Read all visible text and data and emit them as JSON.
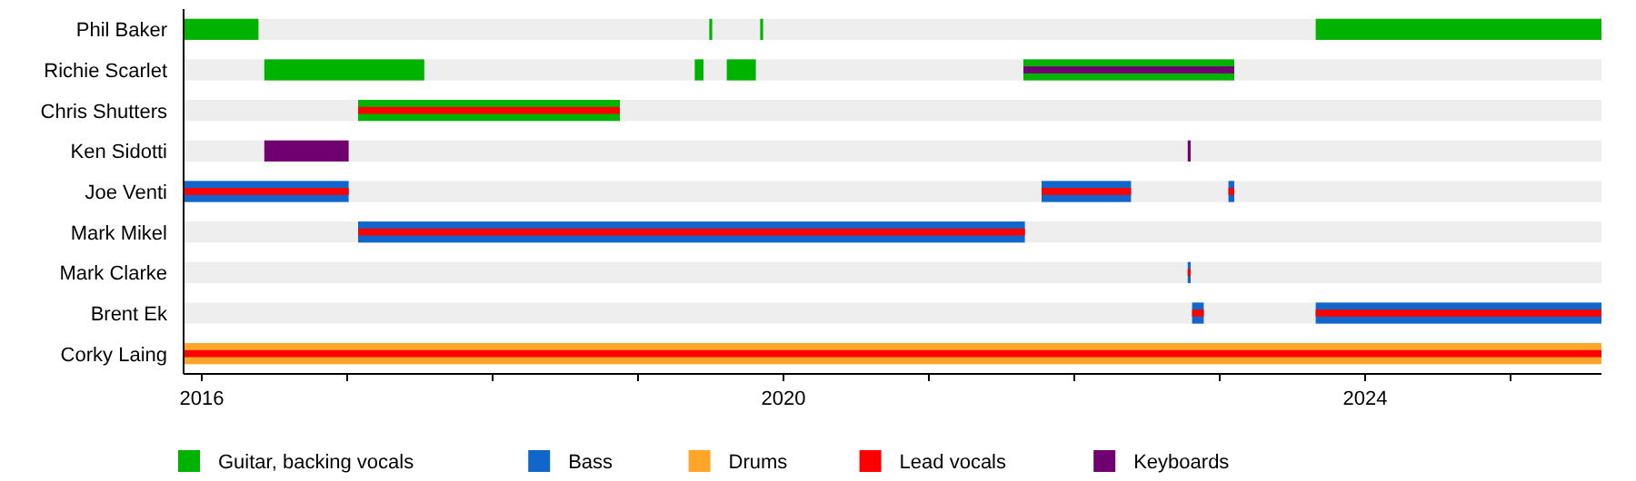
{
  "chart_data": {
    "type": "bar",
    "orientation": "horizontal",
    "categories": [
      "Phil Baker",
      "Richie Scarlet",
      "Chris Shutters",
      "Ken Sidotti",
      "Joe Venti",
      "Mark Mikel",
      "Mark Clarke",
      "Brent Ek",
      "Corky Laing"
    ],
    "xlim": [
      2015.875,
      2025.625
    ],
    "xticks": [
      2016,
      {
        "value": 2017,
        "label": null
      },
      {
        "value": 2018,
        "label": null
      },
      {
        "value": 2019,
        "label": null
      },
      2020,
      {
        "value": 2021,
        "label": null
      },
      {
        "value": 2022,
        "label": null
      },
      {
        "value": 2023,
        "label": null
      },
      2024,
      {
        "value": 2025,
        "label": null
      }
    ],
    "legend": "bottom",
    "grid": false,
    "series": [
      {
        "name": "Guitar, backing vocals",
        "color": "#00b300",
        "base": [
          2015.875,
          2016.43,
          2017.075,
          null,
          null,
          null,
          null,
          null,
          null
        ],
        "values": [
          0.515,
          1.1,
          1.8,
          null,
          null,
          null,
          null,
          null,
          null
        ]
      },
      {
        "color": "#00b300",
        "base": [
          2019.49,
          2019.39,
          null,
          null,
          null,
          null,
          null,
          null,
          null
        ],
        "values": [
          0.02,
          0.06,
          null,
          null,
          null,
          null,
          null,
          null,
          null
        ]
      },
      {
        "color": "#00b300",
        "base": [
          2019.84,
          2019.61,
          null,
          null,
          null,
          null,
          null,
          null,
          null
        ],
        "values": [
          0.02,
          0.2,
          null,
          null,
          null,
          null,
          null,
          null,
          null
        ]
      },
      {
        "color": "#00b300",
        "base": [
          2023.66,
          2021.65,
          null,
          null,
          null,
          null,
          null,
          null,
          null
        ],
        "values": [
          1.965,
          1.45,
          null,
          null,
          null,
          null,
          null,
          null,
          null
        ]
      },
      {
        "name": "Bass",
        "color": "#1166cc",
        "base": [
          null,
          null,
          null,
          null,
          2015.875,
          2017.075,
          2022.78,
          2022.81,
          null
        ],
        "values": [
          null,
          null,
          null,
          null,
          1.135,
          4.585,
          0.02,
          0.08,
          null
        ]
      },
      {
        "color": "#1166cc",
        "base": [
          null,
          null,
          null,
          null,
          2021.775,
          null,
          null,
          2023.66,
          null
        ],
        "values": [
          null,
          null,
          null,
          null,
          0.615,
          null,
          null,
          1.965,
          null
        ]
      },
      {
        "color": "#1166cc",
        "base": [
          null,
          null,
          null,
          null,
          2023.06,
          null,
          null,
          null,
          null
        ],
        "values": [
          null,
          null,
          null,
          null,
          0.04,
          null,
          null,
          null,
          null
        ]
      },
      {
        "name": "Drums",
        "color": "#ffa52a",
        "base": [
          null,
          null,
          null,
          null,
          null,
          null,
          null,
          null,
          2015.875
        ],
        "values": [
          null,
          null,
          null,
          null,
          null,
          null,
          null,
          null,
          9.75
        ]
      },
      {
        "name": "Lead vocals",
        "color": "#ff0000",
        "base": [
          null,
          null,
          2017.075,
          null,
          2015.875,
          2017.075,
          2022.78,
          2022.81,
          2015.875
        ],
        "values": [
          null,
          null,
          1.8,
          null,
          1.135,
          4.585,
          0.02,
          0.08,
          9.75
        ]
      },
      {
        "color": "#ff0000",
        "base": [
          null,
          null,
          null,
          null,
          2021.775,
          null,
          null,
          2023.66,
          null
        ],
        "values": [
          null,
          null,
          null,
          null,
          0.615,
          null,
          null,
          1.965,
          null
        ]
      },
      {
        "color": "#ff0000",
        "base": [
          null,
          null,
          null,
          null,
          2023.06,
          null,
          null,
          null,
          null
        ],
        "values": [
          null,
          null,
          null,
          null,
          0.04,
          null,
          null,
          null,
          null
        ]
      },
      {
        "name": "Keyboards",
        "color": "#700070",
        "base": [
          null,
          2021.65,
          null,
          2016.43,
          null,
          null,
          null,
          null,
          null
        ],
        "values": [
          null,
          1.45,
          null,
          0.58,
          null,
          null,
          null,
          null,
          null
        ]
      },
      {
        "color": "#700070",
        "base": [
          null,
          null,
          null,
          2022.78,
          null,
          null,
          null,
          null,
          null
        ],
        "values": [
          null,
          null,
          null,
          0.02,
          null,
          null,
          null,
          null,
          null
        ]
      }
    ]
  }
}
